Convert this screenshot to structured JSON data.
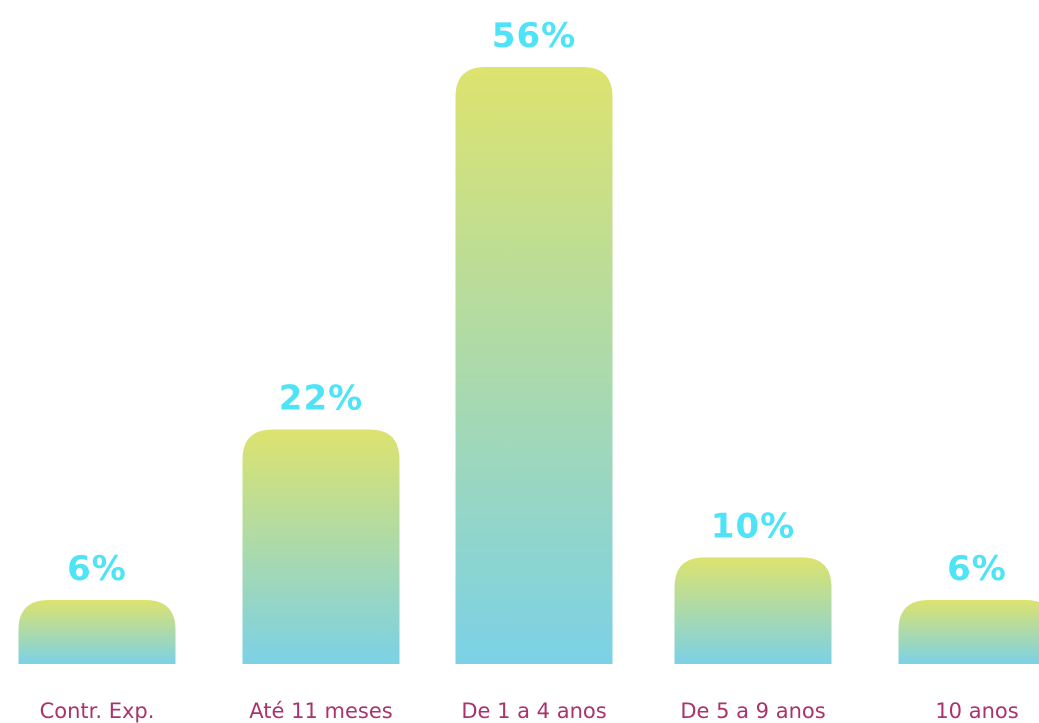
{
  "colors": {
    "bar_top": "#dde36e",
    "bar_bottom": "#7bd1e6",
    "value_label": "#4fe3f7",
    "category_label": "#a8336e",
    "background": "#ffffff"
  },
  "chart_data": {
    "type": "bar",
    "categories": [
      "Contr. Exp.",
      "Até 11 meses",
      "De 1 a 4 anos",
      "De 5 a 9 anos",
      "10 anos"
    ],
    "values": [
      6,
      22,
      56,
      10,
      6
    ],
    "value_labels": [
      "6%",
      "22%",
      "56%",
      "10%",
      "6%"
    ],
    "unit": "%",
    "title": "",
    "xlabel": "",
    "ylabel": "",
    "ylim": [
      0,
      56
    ],
    "grid": false,
    "legend": "none"
  }
}
